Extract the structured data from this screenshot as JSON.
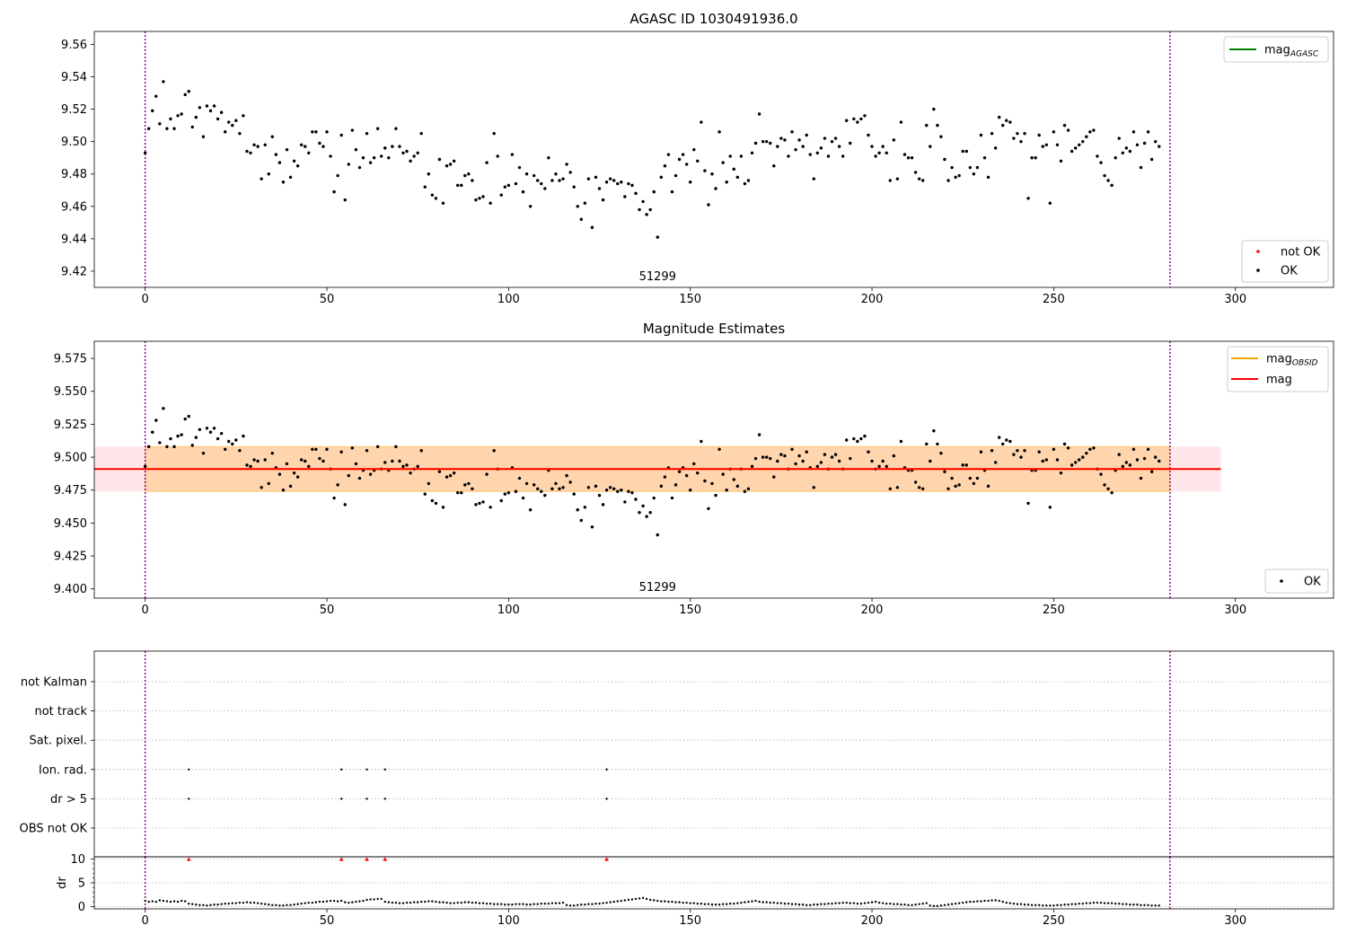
{
  "chart_data": [
    {
      "type": "scatter",
      "title": "AGASC ID 1030491936.0",
      "xlim": [
        -14,
        327
      ],
      "ylim": [
        9.41,
        9.568
      ],
      "xticks": [
        0,
        50,
        100,
        150,
        200,
        250,
        300
      ],
      "yticks": [
        9.42,
        9.44,
        9.46,
        9.48,
        9.5,
        9.52,
        9.54,
        9.56
      ],
      "y_decimals": 2,
      "obs_label": "51299",
      "vlines": [
        0,
        282
      ],
      "legend_lines": [
        {
          "name": "mag",
          "sub": "AGASC",
          "color": "#008000"
        }
      ],
      "legend_points": [
        {
          "name": "not OK",
          "color": "#ff0000"
        },
        {
          "name": "OK",
          "color": "#000000"
        }
      ],
      "series": [
        {
          "name": "OK",
          "color": "#000000",
          "values": [
            9.493,
            9.508,
            9.519,
            9.528,
            9.511,
            9.537,
            9.508,
            9.514,
            9.508,
            9.516,
            9.517,
            9.529,
            9.531,
            9.509,
            9.515,
            9.521,
            9.503,
            9.522,
            9.519,
            9.522,
            9.514,
            9.518,
            9.506,
            9.512,
            9.51,
            9.513,
            9.505,
            9.516,
            9.494,
            9.493,
            9.498,
            9.497,
            9.477,
            9.498,
            9.48,
            9.503,
            9.492,
            9.487,
            9.475,
            9.495,
            9.478,
            9.488,
            9.485,
            9.498,
            9.497,
            9.493,
            9.506,
            9.506,
            9.499,
            9.497,
            9.506,
            9.491,
            9.469,
            9.479,
            9.504,
            9.464,
            9.486,
            9.507,
            9.495,
            9.484,
            9.49,
            9.505,
            9.487,
            9.49,
            9.508,
            9.491,
            9.496,
            9.49,
            9.497,
            9.508,
            9.497,
            9.493,
            9.494,
            9.488,
            9.491,
            9.493,
            9.505,
            9.472,
            9.48,
            9.467,
            9.465,
            9.489,
            9.462,
            9.485,
            9.486,
            9.488,
            9.473,
            9.473,
            9.479,
            9.48,
            9.476,
            9.464,
            9.465,
            9.466,
            9.487,
            9.462,
            9.505,
            9.491,
            9.467,
            9.472,
            9.473,
            9.492,
            9.474,
            9.484,
            9.469,
            9.48,
            9.46,
            9.479,
            9.476,
            9.474,
            9.471,
            9.49,
            9.476,
            9.48,
            9.476,
            9.477,
            9.486,
            9.481,
            9.472,
            9.46,
            9.452,
            9.462,
            9.477,
            9.447,
            9.478,
            9.471,
            9.464,
            9.475,
            9.477,
            9.476,
            9.474,
            9.475,
            9.466,
            9.474,
            9.473,
            9.468,
            9.458,
            9.463,
            9.455,
            9.458,
            9.469,
            9.441,
            9.478,
            9.485,
            9.492,
            9.469,
            9.479,
            9.489,
            9.492,
            9.486,
            9.475,
            9.495,
            9.488,
            9.512,
            9.482,
            9.461,
            9.48,
            9.471,
            9.506,
            9.487,
            9.475,
            9.491,
            9.483,
            9.478,
            9.491,
            9.474,
            9.476,
            9.493,
            9.499,
            9.517,
            9.5,
            9.5,
            9.499,
            9.485,
            9.497,
            9.502,
            9.501,
            9.491,
            9.506,
            9.495,
            9.501,
            9.497,
            9.504,
            9.492,
            9.477,
            9.493,
            9.496,
            9.502,
            9.491,
            9.5,
            9.502,
            9.497,
            9.491,
            9.513,
            9.499,
            9.514,
            9.512,
            9.514,
            9.516,
            9.504,
            9.497,
            9.491,
            9.493,
            9.497,
            9.493,
            9.476,
            9.501,
            9.477,
            9.512,
            9.492,
            9.49,
            9.49,
            9.481,
            9.477,
            9.476,
            9.51,
            9.497,
            9.52,
            9.51,
            9.503,
            9.489,
            9.476,
            9.484,
            9.478,
            9.479,
            9.494,
            9.494,
            9.484,
            9.48,
            9.484,
            9.504,
            9.49,
            9.478,
            9.505,
            9.496,
            9.515,
            9.51,
            9.513,
            9.512,
            9.502,
            9.505,
            9.5,
            9.505,
            9.465,
            9.49,
            9.49,
            9.504,
            9.497,
            9.498,
            9.462,
            9.506,
            9.498,
            9.488,
            9.51,
            9.507,
            9.494,
            9.496,
            9.498,
            9.5,
            9.503,
            9.506,
            9.507,
            9.491,
            9.487,
            9.479,
            9.476,
            9.473,
            9.49,
            9.502,
            9.493,
            9.496,
            9.494,
            9.506,
            9.498,
            9.484,
            9.499,
            9.506,
            9.489,
            9.5,
            9.497
          ]
        }
      ],
      "not_ok_points": []
    },
    {
      "type": "scatter",
      "title": "Magnitude Estimates",
      "xlim": [
        -14,
        327
      ],
      "ylim": [
        9.393,
        9.588
      ],
      "xticks": [
        0,
        50,
        100,
        150,
        200,
        250,
        300
      ],
      "yticks": [
        9.4,
        9.425,
        9.45,
        9.475,
        9.5,
        9.525,
        9.55,
        9.575
      ],
      "y_decimals": 3,
      "obs_label": "51299",
      "vlines": [
        0,
        282
      ],
      "mag": 9.491,
      "mag_band": [
        9.474,
        9.508
      ],
      "mag_band_x": [
        -14,
        296
      ],
      "mag_obsid": 9.491,
      "mag_obsid_band": [
        9.474,
        9.508
      ],
      "mag_obsid_band_x": [
        0,
        282
      ],
      "legend_lines": [
        {
          "name": "mag",
          "sub": "OBSID",
          "color": "#ffa500"
        },
        {
          "name": "mag",
          "sub": "",
          "color": "#ff0000"
        }
      ],
      "legend_points": [
        {
          "name": "OK",
          "color": "#000000"
        }
      ]
    },
    {
      "type": "scatter",
      "title": "",
      "xlim": [
        -14,
        327
      ],
      "xticks": [
        0,
        50,
        100,
        150,
        200,
        250,
        300
      ],
      "vlines": [
        0,
        282
      ],
      "flag_rows": [
        "not Kalman",
        "not track",
        "Sat. pixel.",
        "Ion. rad.",
        "dr > 5",
        "OBS not OK"
      ],
      "flags": {
        "Ion. rad.": [
          12,
          54,
          61,
          66,
          127
        ],
        "dr > 5": [
          12,
          54,
          61,
          66,
          127
        ]
      },
      "dr": {
        "ylabel": "dr",
        "ylim": [
          -0.5,
          10.5
        ],
        "yticks": [
          0,
          5,
          10
        ],
        "flagged_x": [
          12,
          54,
          61,
          66,
          127
        ],
        "flagged_value": 10,
        "values": [
          1.2,
          1.0,
          1.1,
          1.0,
          1.3,
          1.2,
          1.1,
          1.0,
          1.1,
          1.0,
          1.2,
          1.1,
          0.6,
          0.5,
          0.4,
          0.3,
          0.3,
          0.2,
          0.3,
          0.4,
          0.4,
          0.5,
          0.6,
          0.6,
          0.7,
          0.7,
          0.8,
          0.8,
          0.9,
          0.8,
          0.8,
          0.7,
          0.6,
          0.5,
          0.4,
          0.3,
          0.3,
          0.2,
          0.2,
          0.3,
          0.3,
          0.4,
          0.5,
          0.6,
          0.7,
          0.8,
          0.8,
          0.9,
          1.0,
          1.0,
          1.1,
          1.2,
          1.2,
          1.1,
          1.2,
          0.9,
          0.8,
          0.9,
          1.0,
          1.1,
          1.2,
          1.4,
          1.5,
          1.5,
          1.6,
          1.6,
          1.0,
          0.9,
          0.8,
          0.8,
          0.7,
          0.7,
          0.8,
          0.8,
          0.9,
          0.9,
          1.0,
          1.0,
          1.1,
          1.1,
          1.0,
          0.9,
          0.9,
          0.8,
          0.7,
          0.7,
          0.8,
          0.8,
          0.9,
          0.9,
          0.8,
          0.8,
          0.7,
          0.7,
          0.6,
          0.6,
          0.5,
          0.5,
          0.5,
          0.4,
          0.4,
          0.4,
          0.5,
          0.5,
          0.5,
          0.4,
          0.4,
          0.5,
          0.5,
          0.6,
          0.6,
          0.6,
          0.7,
          0.7,
          0.7,
          0.8,
          0.3,
          0.2,
          0.2,
          0.3,
          0.4,
          0.4,
          0.5,
          0.5,
          0.6,
          0.6,
          0.7,
          0.8,
          0.9,
          1.0,
          1.1,
          1.2,
          1.3,
          1.4,
          1.5,
          1.6,
          1.7,
          1.8,
          1.6,
          1.4,
          1.3,
          1.2,
          1.1,
          1.1,
          1.0,
          1.0,
          0.9,
          0.9,
          0.8,
          0.8,
          0.7,
          0.7,
          0.6,
          0.6,
          0.5,
          0.5,
          0.4,
          0.4,
          0.4,
          0.5,
          0.5,
          0.6,
          0.6,
          0.7,
          0.8,
          0.9,
          1.0,
          1.1,
          1.2,
          1.0,
          0.9,
          0.9,
          0.8,
          0.8,
          0.7,
          0.7,
          0.6,
          0.6,
          0.5,
          0.5,
          0.4,
          0.4,
          0.3,
          0.3,
          0.4,
          0.4,
          0.5,
          0.5,
          0.6,
          0.6,
          0.7,
          0.7,
          0.8,
          0.8,
          0.7,
          0.7,
          0.6,
          0.6,
          0.7,
          0.8,
          0.9,
          1.0,
          0.8,
          0.7,
          0.6,
          0.6,
          0.5,
          0.5,
          0.4,
          0.4,
          0.3,
          0.3,
          0.4,
          0.5,
          0.6,
          0.7,
          0.2,
          0.1,
          0.1,
          0.2,
          0.3,
          0.4,
          0.5,
          0.6,
          0.7,
          0.8,
          0.9,
          1.0,
          1.0,
          1.1,
          1.1,
          1.2,
          1.2,
          1.3,
          1.3,
          1.2,
          1.0,
          0.8,
          0.7,
          0.6,
          0.5,
          0.5,
          0.4,
          0.4,
          0.3,
          0.3,
          0.3,
          0.2,
          0.2,
          0.2,
          0.2,
          0.3,
          0.3,
          0.4,
          0.4,
          0.5,
          0.5,
          0.6,
          0.6,
          0.7,
          0.7,
          0.8,
          0.8,
          0.8,
          0.7,
          0.7,
          0.7,
          0.6,
          0.6,
          0.5,
          0.5,
          0.4,
          0.4,
          0.4,
          0.3,
          0.3,
          0.3,
          0.2,
          0.2,
          0.2
        ]
      }
    }
  ]
}
